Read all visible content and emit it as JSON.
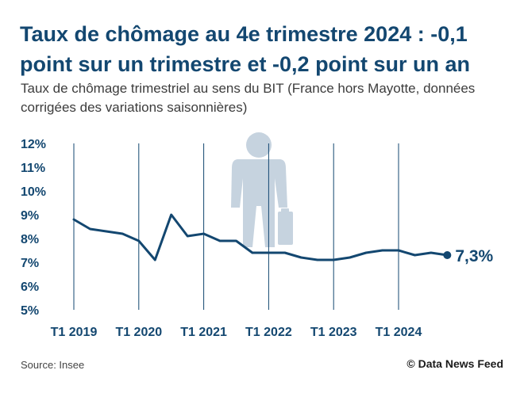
{
  "header": {
    "title": "Taux de chômage au 4e trimestre 2024 : -0,1 point sur un trimestre et -0,2 point sur un an",
    "subtitle": "Taux de chômage trimestriel au sens du BIT (France hors Mayotte, données corrigées des variations saisonnières)"
  },
  "footer": {
    "source": "Source: Insee",
    "credit": "© Data News Feed"
  },
  "illustration": {
    "icon": "businessman-with-briefcase-icon",
    "color": "#c6d3df"
  },
  "colors": {
    "line": "#134770",
    "title": "#134770",
    "axis_text": "#134770",
    "vertical_grid": "#134770"
  },
  "chart_data": {
    "type": "line",
    "title": "Taux de chômage au 4e trimestre 2024 : -0,1 point sur un trimestre et -0,2 point sur un an",
    "subtitle": "Taux de chômage trimestriel au sens du BIT (France hors Mayotte, données corrigées des variations saisonnières)",
    "xlabel": "",
    "ylabel": "",
    "ylim": [
      5,
      12
    ],
    "yticks": [
      "12%",
      "11%",
      "10%",
      "9%",
      "8%",
      "7%",
      "6%",
      "5%"
    ],
    "ytick_values": [
      12,
      11,
      10,
      9,
      8,
      7,
      6,
      5
    ],
    "xticks": [
      "T1 2019",
      "T1 2020",
      "T1 2021",
      "T1 2022",
      "T1 2023",
      "T1 2024"
    ],
    "grid": "vertical lines at each T1",
    "legend": "none",
    "categories": [
      "T1 2019",
      "T2 2019",
      "T3 2019",
      "T4 2019",
      "T1 2020",
      "T2 2020",
      "T3 2020",
      "T4 2020",
      "T1 2021",
      "T2 2021",
      "T3 2021",
      "T4 2021",
      "T1 2022",
      "T2 2022",
      "T3 2022",
      "T4 2022",
      "T1 2023",
      "T2 2023",
      "T3 2023",
      "T4 2023",
      "T1 2024",
      "T2 2024",
      "T3 2024",
      "T4 2024"
    ],
    "series": [
      {
        "values": [
          8.8,
          8.4,
          8.3,
          8.2,
          7.9,
          7.1,
          9.0,
          8.1,
          8.2,
          7.9,
          7.9,
          7.4,
          7.4,
          7.4,
          7.2,
          7.1,
          7.1,
          7.2,
          7.4,
          7.5,
          7.5,
          7.3,
          7.4,
          7.3
        ]
      }
    ],
    "annotations": [
      {
        "category": "T4 2024",
        "value": 7.3,
        "text": "7,3%"
      }
    ]
  }
}
